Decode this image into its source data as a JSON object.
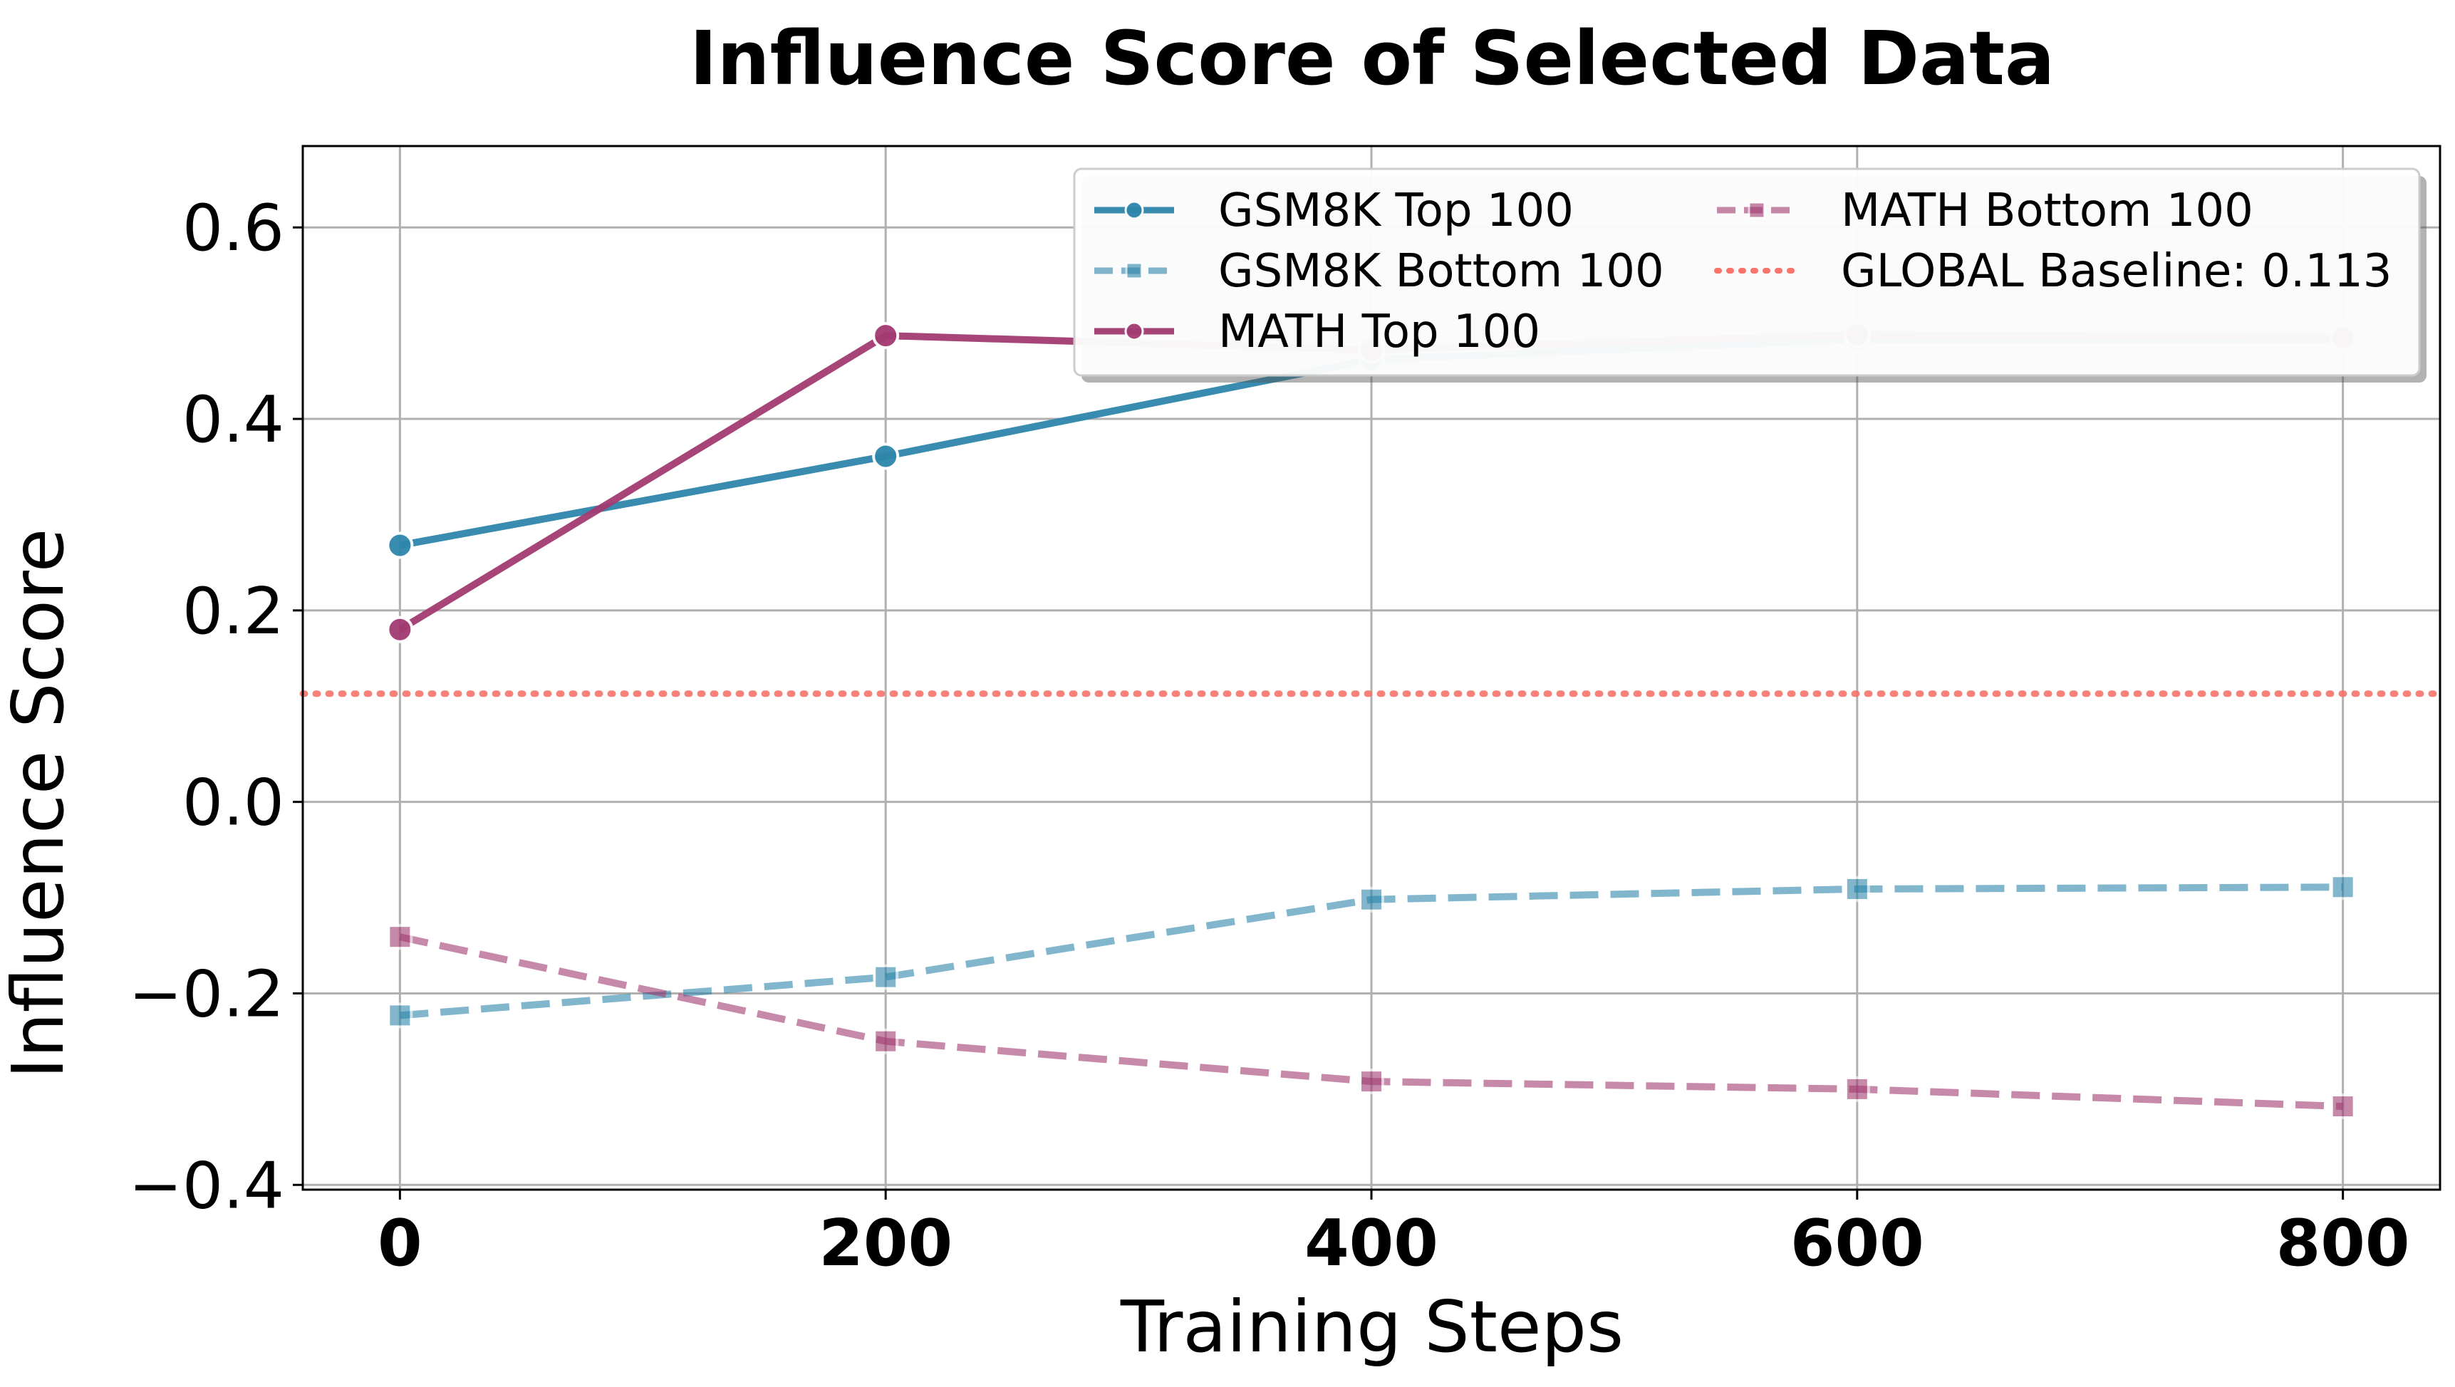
{
  "chart_data": {
    "type": "line",
    "title": "Influence Score of Selected Data",
    "xlabel": "Training Steps",
    "ylabel": "Influence Score",
    "x": [
      0,
      200,
      400,
      600,
      800
    ],
    "xticks": [
      0,
      200,
      400,
      600,
      800
    ],
    "xtick_labels": [
      "0",
      "200",
      "400",
      "600",
      "800"
    ],
    "yticks": [
      -0.4,
      -0.2,
      0.0,
      0.2,
      0.4,
      0.6
    ],
    "ytick_labels": [
      "−0.4",
      "−0.2",
      "0.0",
      "0.2",
      "0.4",
      "0.6"
    ],
    "xlim": [
      -40,
      840
    ],
    "ylim": [
      -0.405,
      0.685
    ],
    "grid": true,
    "legend_position": "top-right",
    "series": [
      {
        "name": "GSM8K Top 100",
        "values": [
          0.268,
          0.361,
          0.462,
          0.483,
          0.483
        ],
        "color": "#2e86ab",
        "style": "solid",
        "marker": "circle",
        "opacity": 0.95
      },
      {
        "name": "GSM8K Bottom 100",
        "values": [
          -0.223,
          -0.183,
          -0.102,
          -0.091,
          -0.089
        ],
        "color": "#2e86ab",
        "style": "dashed",
        "marker": "square",
        "opacity": 0.6
      },
      {
        "name": "MATH Top 100",
        "values": [
          0.18,
          0.487,
          0.472,
          0.488,
          0.485
        ],
        "color": "#a23b72",
        "style": "solid",
        "marker": "circle",
        "opacity": 0.95
      },
      {
        "name": "MATH Bottom 100",
        "values": [
          -0.141,
          -0.25,
          -0.292,
          -0.3,
          -0.318
        ],
        "color": "#a23b72",
        "style": "dashed",
        "marker": "square",
        "opacity": 0.6
      }
    ],
    "baseline": {
      "name": "GLOBAL Baseline: 0.113",
      "value": 0.113,
      "color": "#f8736a"
    }
  }
}
